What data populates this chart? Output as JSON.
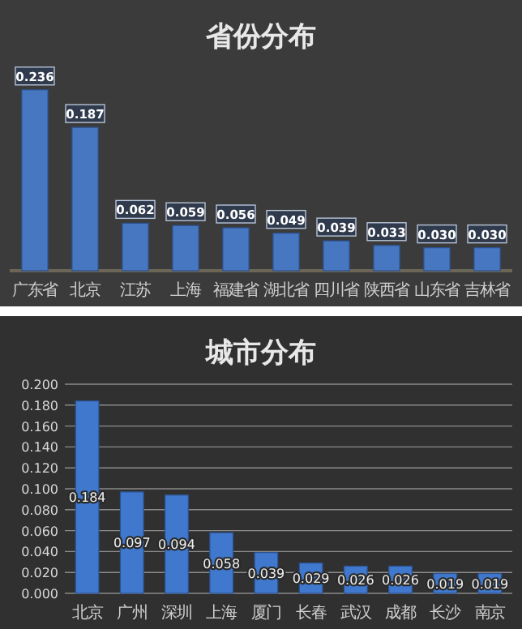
{
  "chart_data": [
    {
      "type": "bar",
      "title": "省份分布",
      "categories": [
        "广东省",
        "北京",
        "江苏",
        "上海",
        "福建省",
        "湖北省",
        "四川省",
        "陕西省",
        "山东省",
        "吉林省"
      ],
      "values": [
        0.236,
        0.187,
        0.062,
        0.059,
        0.056,
        0.049,
        0.039,
        0.033,
        0.03,
        0.03
      ],
      "color": "#4677c0",
      "value_labels": [
        "0.236",
        "0.187",
        "0.062",
        "0.059",
        "0.056",
        "0.049",
        "0.039",
        "0.033",
        "0.030",
        "0.030"
      ]
    },
    {
      "type": "bar",
      "title": "城市分布",
      "categories": [
        "北京",
        "广州",
        "深圳",
        "上海",
        "厦门",
        "长春",
        "武汉",
        "成都",
        "长沙",
        "南京"
      ],
      "values": [
        0.184,
        0.097,
        0.094,
        0.058,
        0.039,
        0.029,
        0.026,
        0.026,
        0.019,
        0.019
      ],
      "color": "#3f78cc",
      "value_labels": [
        "0.184",
        "0.097",
        "0.094",
        "0.058",
        "0.039",
        "0.029",
        "0.026",
        "0.026",
        "0.019",
        "0.019"
      ],
      "ylim": [
        0,
        0.2
      ],
      "yticks": [
        {
          "value": 0,
          "label": "0.000"
        },
        {
          "value": 0.02,
          "label": "0.020"
        },
        {
          "value": 0.04,
          "label": "0.040"
        },
        {
          "value": 0.06,
          "label": "0.060"
        },
        {
          "value": 0.08,
          "label": "0.080"
        },
        {
          "value": 0.1,
          "label": "0.100"
        },
        {
          "value": 0.12,
          "label": "0.120"
        },
        {
          "value": 0.14,
          "label": "0.140"
        },
        {
          "value": 0.16,
          "label": "0.160"
        },
        {
          "value": 0.18,
          "label": "0.180"
        },
        {
          "value": 0.2,
          "label": "0.200"
        }
      ],
      "grid": "y"
    }
  ]
}
